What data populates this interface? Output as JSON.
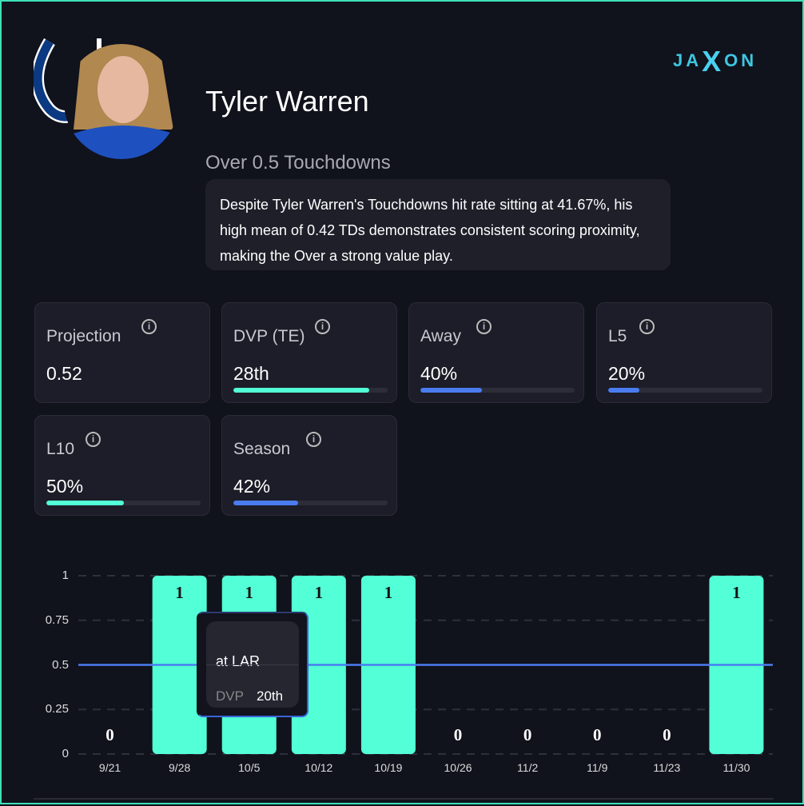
{
  "player": {
    "name": "Tyler Warren",
    "prop": "Over 0.5 Touchdowns",
    "description": "Despite Tyler Warren's Touchdowns hit rate sitting at 41.67%, his high mean of 0.42 TDs demonstrates consistent scoring proximity, making the Over a strong value play."
  },
  "logo": {
    "left": "JA",
    "x": "X",
    "right": "ON"
  },
  "cards": [
    {
      "label": "Projection",
      "value": "0.52"
    },
    {
      "label": "DVP (TE)",
      "value": "28th",
      "fill": 0.88,
      "color": "#52ffd6"
    },
    {
      "label": "Away",
      "value": "40%",
      "fill": 0.4,
      "color": "#4a7cf0"
    },
    {
      "label": "L5",
      "value": "20%",
      "fill": 0.2,
      "color": "#4a7cf0"
    },
    {
      "label": "L10",
      "value": "50%",
      "fill": 0.5,
      "color": "#52ffd6"
    },
    {
      "label": "Season",
      "value": "42%",
      "fill": 0.42,
      "color": "#4a7cf0"
    }
  ],
  "tooltip": {
    "opponent": "at LAR",
    "dvp_label": "DVP",
    "dvp_value": "20th"
  },
  "chart_data": {
    "type": "bar",
    "categories": [
      "9/21",
      "9/28",
      "10/5",
      "10/12",
      "10/19",
      "10/26",
      "11/2",
      "11/9",
      "11/23",
      "11/30"
    ],
    "values": [
      0,
      1,
      1,
      1,
      1,
      0,
      0,
      0,
      0,
      1
    ],
    "yticks": [
      "0",
      "0.25",
      "0.5",
      "0.75",
      "1"
    ],
    "ylim": [
      0,
      1
    ],
    "line": 0.5,
    "bar_color": "#52ffd6",
    "line_color": "#4a7cf0"
  }
}
